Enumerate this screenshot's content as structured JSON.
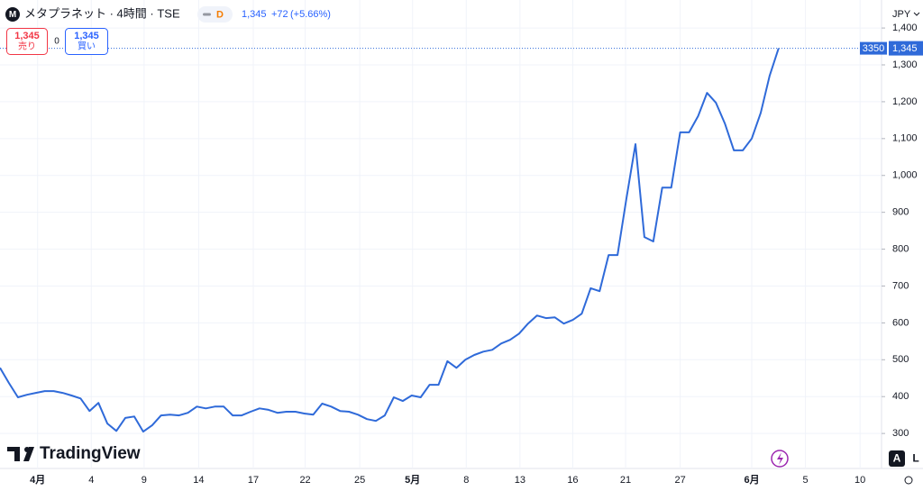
{
  "ui": {
    "title": "メタプラネット · 4時間 · TSE",
    "logo": "M",
    "pill": "D",
    "last": "1,345",
    "change": "+72",
    "change_pct": "(+5.66%)",
    "sell_price": "1,345",
    "sell": "売り",
    "spread": "0",
    "buy_price": "1,345",
    "buy": "買い",
    "currency": "JPY",
    "countdown": "3350",
    "price_label": "1,345",
    "brand": "TradingView",
    "auto": "A",
    "log": "L"
  },
  "chart_data": {
    "type": "line",
    "color": "#2f6ad9",
    "values": [
      478,
      437,
      398,
      405,
      410,
      415,
      415,
      410,
      403,
      395,
      361,
      383,
      327,
      307,
      342,
      346,
      305,
      322,
      349,
      351,
      349,
      356,
      373,
      368,
      373,
      373,
      349,
      349,
      359,
      368,
      364,
      356,
      359,
      359,
      354,
      351,
      381,
      373,
      361,
      359,
      351,
      339,
      334,
      349,
      398,
      388,
      403,
      398,
      432,
      432,
      496,
      478,
      500,
      513,
      522,
      527,
      544,
      554,
      571,
      598,
      620,
      613,
      615,
      598,
      608,
      625,
      694,
      686,
      784,
      784,
      938,
      1085,
      833,
      821,
      967,
      967,
      1117,
      1117,
      1161,
      1224,
      1197,
      1141,
      1068,
      1068,
      1100,
      1170,
      1271,
      1345
    ],
    "xlim": [
      0,
      98.5
    ],
    "ylim": [
      205,
      1476
    ],
    "xticks": [
      {
        "value": 4.2,
        "label": "4月"
      },
      {
        "value": 10.2,
        "label": "4"
      },
      {
        "value": 16.1,
        "label": "9"
      },
      {
        "value": 22.2,
        "label": "14"
      },
      {
        "value": 28.3,
        "label": "17"
      },
      {
        "value": 34.1,
        "label": "22"
      },
      {
        "value": 40.2,
        "label": "25"
      },
      {
        "value": 46.1,
        "label": "5月"
      },
      {
        "value": 52.1,
        "label": "8"
      },
      {
        "value": 58.1,
        "label": "13"
      },
      {
        "value": 64.0,
        "label": "16"
      },
      {
        "value": 69.9,
        "label": "21"
      },
      {
        "value": 76.0,
        "label": "27"
      },
      {
        "value": 84.0,
        "label": "6月"
      },
      {
        "value": 90.0,
        "label": "5"
      },
      {
        "value": 96.1,
        "label": "10"
      }
    ],
    "yticks": [
      300,
      400,
      500,
      600,
      700,
      800,
      900,
      {
        "value": 1000,
        "label": "1,000"
      },
      {
        "value": 1100,
        "label": "1,100"
      },
      {
        "value": 1200,
        "label": "1,200"
      },
      {
        "value": 1300,
        "label": "1,300"
      },
      {
        "value": 1400,
        "label": "1,400"
      }
    ],
    "grid": true
  }
}
